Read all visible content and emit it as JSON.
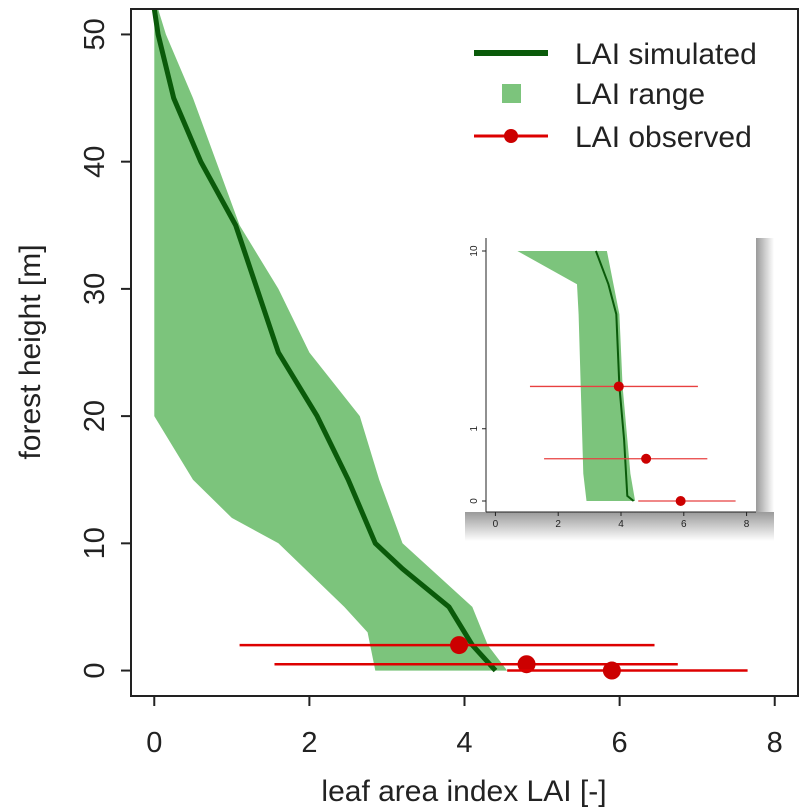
{
  "chart_data": [
    {
      "type": "line",
      "xlabel": "leaf area index LAI [-]",
      "ylabel": "forest height [m]",
      "xlim": [
        -0.3,
        8.3
      ],
      "ylim": [
        -2,
        52
      ],
      "xticks": [
        0,
        2,
        4,
        6,
        8
      ],
      "yticks": [
        0,
        10,
        20,
        30,
        40,
        50
      ],
      "grid": false,
      "legend_position": "top-right",
      "legend": [
        {
          "label": "LAI simulated",
          "kind": "line"
        },
        {
          "label": "LAI range",
          "kind": "band"
        },
        {
          "label": "LAI observed",
          "kind": "point-with-error"
        }
      ],
      "series": [
        {
          "name": "LAI simulated",
          "color": "#0a5a0a",
          "x": [
            0.0,
            0.05,
            0.25,
            0.6,
            1.05,
            1.6,
            2.1,
            2.5,
            2.85,
            3.2,
            3.8,
            4.1,
            4.4
          ],
          "y": [
            52,
            50,
            45,
            40,
            35,
            25,
            20,
            15,
            10,
            8,
            5,
            2,
            0
          ]
        },
        {
          "name": "LAI range",
          "color": "#7cc47c",
          "upper_x": [
            0.05,
            0.15,
            0.5,
            1.1,
            1.6,
            2.0,
            2.65,
            2.9,
            3.2,
            4.1,
            4.3,
            4.55
          ],
          "upper_y": [
            52,
            50,
            45,
            35,
            30,
            25,
            20,
            15,
            10,
            5,
            2,
            0
          ],
          "lower_x": [
            2.85,
            2.75,
            2.45,
            1.6,
            1.0,
            0.5,
            0.0,
            0.0,
            0.0,
            0.0
          ],
          "lower_y": [
            0,
            3,
            5,
            10,
            12,
            15,
            20,
            25,
            30,
            52
          ]
        },
        {
          "name": "LAI observed",
          "color": "#dd0000",
          "points": [
            {
              "x": 3.93,
              "y": 2,
              "xmin": 1.1,
              "xmax": 6.45
            },
            {
              "x": 4.8,
              "y": 0.5,
              "xmin": 1.55,
              "xmax": 6.75
            },
            {
              "x": 5.9,
              "y": 0,
              "xmin": 4.55,
              "xmax": 7.65
            }
          ]
        }
      ]
    },
    {
      "type": "line",
      "inset": true,
      "scale_y": "log",
      "xlim": [
        -0.3,
        8.3
      ],
      "xticks": [
        0,
        2,
        4,
        6,
        8
      ],
      "yticks": [
        0,
        1,
        10
      ],
      "series": [
        {
          "name": "LAI simulated",
          "color": "#0a5a0a",
          "x": [
            3.2,
            3.6,
            3.85,
            3.95,
            4.1,
            4.2,
            4.4
          ],
          "y": [
            10,
            7,
            5,
            2,
            0.8,
            0.05,
            0
          ]
        },
        {
          "name": "LAI range",
          "color": "#7cc47c",
          "upper_x": [
            3.55,
            3.95,
            4.05,
            4.3,
            4.45
          ],
          "upper_y": [
            10,
            5,
            2,
            0.3,
            0
          ],
          "lower_x": [
            2.9,
            2.8,
            2.65,
            2.6,
            0.7
          ],
          "lower_y": [
            0,
            0.3,
            5,
            7,
            10
          ]
        },
        {
          "name": "LAI observed",
          "color": "#dd0000",
          "points": [
            {
              "x": 3.93,
              "y": 2,
              "xmin": 1.1,
              "xmax": 6.45
            },
            {
              "x": 4.8,
              "y": 0.5,
              "xmin": 1.55,
              "xmax": 6.75
            },
            {
              "x": 5.9,
              "y": 0,
              "xmin": 4.55,
              "xmax": 7.65
            }
          ]
        }
      ]
    }
  ]
}
